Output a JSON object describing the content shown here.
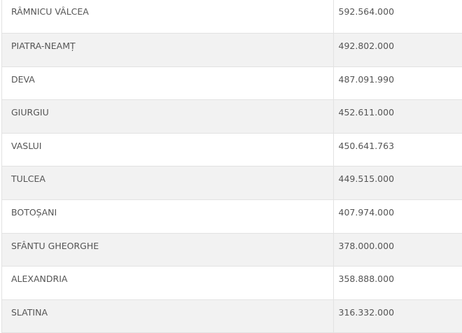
{
  "table": {
    "rows": [
      {
        "city": "RÂMNICU VÂLCEA",
        "value": "592.564.000"
      },
      {
        "city": "PIATRA-NEAMȚ",
        "value": "492.802.000"
      },
      {
        "city": "DEVA",
        "value": "487.091.990"
      },
      {
        "city": "GIURGIU",
        "value": "452.611.000"
      },
      {
        "city": "VASLUI",
        "value": "450.641.763"
      },
      {
        "city": "TULCEA",
        "value": "449.515.000"
      },
      {
        "city": "BOTOȘANI",
        "value": "407.974.000"
      },
      {
        "city": "SFÂNTU GHEORGHE",
        "value": "378.000.000"
      },
      {
        "city": "ALEXANDRIA",
        "value": "358.888.000"
      },
      {
        "city": "SLATINA",
        "value": "316.332.000"
      }
    ]
  }
}
